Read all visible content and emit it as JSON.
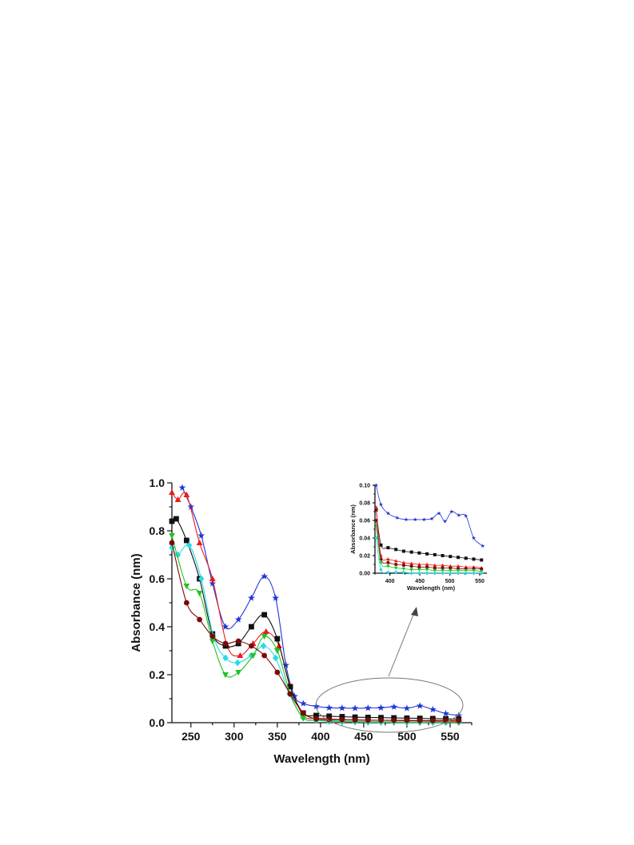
{
  "chart_data": [
    {
      "type": "line",
      "xlabel": "Wavelength (nm)",
      "ylabel": "Absorbance (nm)",
      "xlim": [
        228,
        575
      ],
      "ylim": [
        0,
        1.0
      ],
      "xticks": [
        250,
        300,
        350,
        400,
        450,
        500,
        550
      ],
      "yticks": [
        0.0,
        0.2,
        0.4,
        0.6,
        0.8,
        1.0
      ],
      "xtick_labels": [
        "250",
        "300",
        "350",
        "400",
        "450",
        "500",
        "550"
      ],
      "ytick_labels": [
        "0.0",
        "0.2",
        "0.4",
        "0.6",
        "0.8",
        "1.0"
      ],
      "grid": false,
      "series": [
        {
          "color": "#1f35d6",
          "marker": "star",
          "x": [
            240,
            250,
            262,
            275,
            290,
            305,
            320,
            335,
            348,
            360,
            370,
            380,
            395,
            410,
            425,
            440,
            455,
            470,
            485,
            500,
            515,
            530,
            545,
            560
          ],
          "y": [
            0.98,
            0.9,
            0.78,
            0.58,
            0.4,
            0.43,
            0.52,
            0.61,
            0.52,
            0.24,
            0.11,
            0.08,
            0.068,
            0.062,
            0.061,
            0.06,
            0.061,
            0.062,
            0.066,
            0.06,
            0.07,
            0.055,
            0.038,
            0.03
          ]
        },
        {
          "color": "#ee1a1a",
          "marker": "triangle-up",
          "x": [
            228,
            235,
            245,
            260,
            275,
            292,
            307,
            322,
            337,
            352,
            364,
            380,
            395,
            410,
            425,
            440,
            455,
            470,
            485,
            500,
            515,
            530,
            545,
            560
          ],
          "y": [
            0.96,
            0.93,
            0.95,
            0.75,
            0.6,
            0.32,
            0.28,
            0.33,
            0.38,
            0.32,
            0.16,
            0.03,
            0.02,
            0.016,
            0.013,
            0.012,
            0.011,
            0.01,
            0.009,
            0.008,
            0.008,
            0.007,
            0.006,
            0.006
          ]
        },
        {
          "color": "#111111",
          "marker": "square",
          "x": [
            228,
            233,
            245,
            260,
            275,
            290,
            305,
            320,
            335,
            350,
            365,
            380,
            395,
            410,
            425,
            440,
            455,
            470,
            485,
            500,
            515,
            530,
            545,
            560
          ],
          "y": [
            0.84,
            0.85,
            0.76,
            0.6,
            0.37,
            0.32,
            0.33,
            0.4,
            0.45,
            0.35,
            0.15,
            0.04,
            0.03,
            0.027,
            0.025,
            0.023,
            0.022,
            0.021,
            0.02,
            0.019,
            0.018,
            0.017,
            0.016,
            0.015
          ]
        },
        {
          "color": "#2bd9e6",
          "marker": "diamond",
          "x": [
            228,
            235,
            248,
            262,
            276,
            290,
            304,
            320,
            334,
            348,
            364,
            380,
            395,
            410,
            425,
            440,
            455,
            470,
            485,
            500,
            515,
            530,
            545,
            560
          ],
          "y": [
            0.73,
            0.7,
            0.74,
            0.6,
            0.36,
            0.27,
            0.25,
            0.28,
            0.32,
            0.27,
            0.12,
            0.02,
            0.01,
            0.006,
            0.004,
            0.003,
            0.002,
            0.002,
            0.002,
            0.001,
            0.001,
            0.001,
            0.001,
            0.001
          ]
        },
        {
          "color": "#22c322",
          "marker": "triangle-down",
          "x": [
            228,
            245,
            260,
            275,
            290,
            305,
            322,
            335,
            350,
            365,
            380,
            395,
            410,
            425,
            440,
            455,
            470,
            485,
            500,
            515,
            530,
            545,
            560
          ],
          "y": [
            0.78,
            0.57,
            0.54,
            0.34,
            0.2,
            0.21,
            0.28,
            0.36,
            0.3,
            0.12,
            0.02,
            0.012,
            0.008,
            0.006,
            0.005,
            0.004,
            0.004,
            0.003,
            0.003,
            0.003,
            0.003,
            0.002,
            0.002
          ]
        },
        {
          "color": "#7a0a0a",
          "marker": "circle",
          "x": [
            228,
            245,
            260,
            275,
            290,
            305,
            320,
            335,
            350,
            365,
            380,
            395,
            410,
            425,
            440,
            455,
            470,
            485,
            500,
            515,
            530,
            545,
            560
          ],
          "y": [
            0.75,
            0.5,
            0.43,
            0.36,
            0.33,
            0.34,
            0.32,
            0.28,
            0.21,
            0.12,
            0.04,
            0.016,
            0.013,
            0.012,
            0.011,
            0.01,
            0.01,
            0.01,
            0.01,
            0.009,
            0.009,
            0.009,
            0.009
          ]
        }
      ]
    },
    {
      "type": "line",
      "inset": true,
      "xlabel": "Wavelength (nm)",
      "ylabel": "Absorbance (nm)",
      "xlim": [
        375,
        562
      ],
      "ylim": [
        0,
        0.1
      ],
      "xticks": [
        400,
        450,
        500,
        550
      ],
      "yticks": [
        0.0,
        0.02,
        0.04,
        0.06,
        0.08,
        0.1
      ],
      "xtick_labels": [
        "400",
        "450",
        "500",
        "550"
      ],
      "ytick_labels": [
        "0.00",
        "0.02",
        "0.04",
        "0.06",
        "0.08",
        "0.10"
      ],
      "grid": false,
      "series": [
        {
          "color": "#1f35d6",
          "marker": "star",
          "x": [
            377,
            385,
            397,
            412,
            427,
            442,
            457,
            470,
            482,
            492,
            503,
            515,
            527,
            540,
            555
          ],
          "y": [
            0.1,
            0.078,
            0.068,
            0.063,
            0.061,
            0.061,
            0.061,
            0.062,
            0.068,
            0.059,
            0.07,
            0.066,
            0.065,
            0.04,
            0.031
          ]
        },
        {
          "color": "#111111",
          "marker": "square",
          "x": [
            377,
            385,
            397,
            410,
            423,
            436,
            449,
            462,
            475,
            488,
            501,
            514,
            527,
            540,
            553
          ],
          "y": [
            0.072,
            0.032,
            0.029,
            0.027,
            0.025,
            0.024,
            0.023,
            0.022,
            0.021,
            0.02,
            0.019,
            0.018,
            0.017,
            0.016,
            0.015
          ]
        },
        {
          "color": "#ee1a1a",
          "marker": "triangle-up",
          "x": [
            377,
            385,
            397,
            410,
            423,
            436,
            449,
            462,
            475,
            488,
            501,
            514,
            527,
            540,
            553
          ],
          "y": [
            0.075,
            0.02,
            0.016,
            0.014,
            0.012,
            0.011,
            0.01,
            0.01,
            0.009,
            0.009,
            0.008,
            0.008,
            0.007,
            0.007,
            0.006
          ]
        },
        {
          "color": "#7a0a0a",
          "marker": "circle",
          "x": [
            377,
            385,
            397,
            410,
            423,
            436,
            449,
            462,
            475,
            488,
            501,
            514,
            527,
            540,
            553
          ],
          "y": [
            0.06,
            0.016,
            0.012,
            0.01,
            0.009,
            0.008,
            0.007,
            0.007,
            0.006,
            0.006,
            0.006,
            0.005,
            0.005,
            0.005,
            0.005
          ]
        },
        {
          "color": "#22c322",
          "marker": "triangle-down",
          "x": [
            377,
            385,
            397,
            410,
            423,
            436,
            449,
            462,
            475,
            488,
            501,
            514,
            527,
            540,
            553
          ],
          "y": [
            0.055,
            0.012,
            0.008,
            0.006,
            0.005,
            0.004,
            0.004,
            0.004,
            0.003,
            0.003,
            0.003,
            0.003,
            0.003,
            0.003,
            0.002
          ]
        },
        {
          "color": "#2bd9e6",
          "marker": "diamond",
          "x": [
            377,
            385,
            397,
            410,
            423,
            436,
            449,
            462,
            475,
            488,
            501,
            514,
            527,
            540,
            553
          ],
          "y": [
            0.04,
            0.004,
            0.001,
            0.001,
            0.001,
            0.0,
            0.0,
            0.0,
            0.0,
            0.0,
            0.0,
            0.0,
            0.0,
            0.0,
            0.0
          ]
        }
      ]
    }
  ]
}
